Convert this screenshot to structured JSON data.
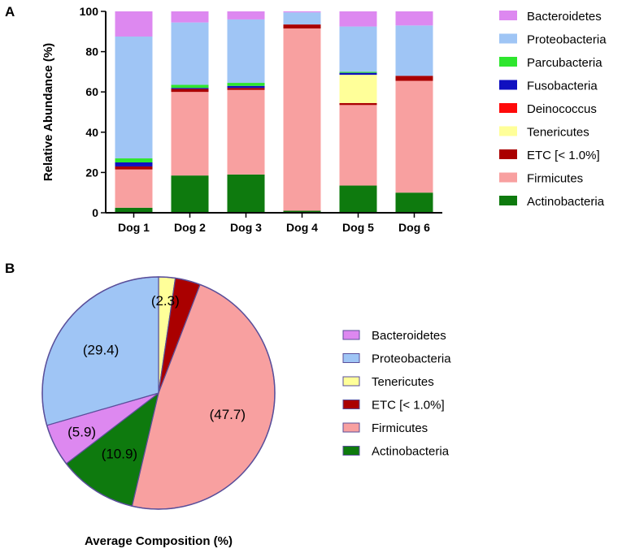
{
  "panels": {
    "a": "A",
    "b": "B"
  },
  "colors": {
    "Bacteroidetes": "#dd88f0",
    "Proteobacteria": "#9fc5f5",
    "Parcubacteria": "#2ee62e",
    "Fusobacteria": "#1010c0",
    "Deinococcus": "#ff0a0a",
    "Tenericutes": "#ffff99",
    "ETC [< 1.0%]": "#aa0000",
    "Firmicutes": "#f8a0a0",
    "Actinobacteria": "#0e7a0e"
  },
  "chart_data": [
    {
      "type": "bar",
      "stacked": true,
      "ylabel": "Relative Abundance  (%)",
      "xlabel": "",
      "ylim": [
        0,
        100
      ],
      "yticks": [
        "0",
        "20",
        "40",
        "60",
        "80",
        "100"
      ],
      "categories": [
        "Dog 1",
        "Dog 2",
        "Dog 3",
        "Dog 4",
        "Dog 5",
        "Dog 6"
      ],
      "legend_order": [
        "Bacteroidetes",
        "Proteobacteria",
        "Parcubacteria",
        "Fusobacteria",
        "Deinococcus",
        "Tenericutes",
        "ETC [< 1.0%]",
        "Firmicutes",
        "Actinobacteria"
      ],
      "legend_position": "right",
      "series": [
        {
          "name": "Actinobacteria",
          "values": [
            2.5,
            18.5,
            19,
            1,
            13.5,
            10
          ]
        },
        {
          "name": "Firmicutes",
          "values": [
            19,
            41.5,
            42,
            90.5,
            40,
            55.5
          ]
        },
        {
          "name": "ETC [< 1.0%]",
          "values": [
            1.5,
            1.5,
            1,
            2,
            1,
            2.5
          ]
        },
        {
          "name": "Tenericutes",
          "values": [
            0,
            0,
            0,
            0,
            14,
            0
          ]
        },
        {
          "name": "Deinococcus",
          "values": [
            0,
            0,
            0,
            0,
            0,
            0
          ]
        },
        {
          "name": "Fusobacteria",
          "values": [
            2,
            0.5,
            1,
            0,
            1,
            0
          ]
        },
        {
          "name": "Parcubacteria",
          "values": [
            2,
            1.5,
            1.5,
            0,
            0.5,
            0
          ]
        },
        {
          "name": "Proteobacteria",
          "values": [
            60.5,
            31,
            31.5,
            6,
            22.5,
            25
          ]
        },
        {
          "name": "Bacteroidetes",
          "values": [
            12.5,
            5.5,
            4,
            0.5,
            7.5,
            7
          ]
        }
      ]
    },
    {
      "type": "pie",
      "title": "Average Composition (%)",
      "legend_position": "right",
      "slices": [
        {
          "name": "Tenericutes",
          "value": 2.3,
          "label": "(2.3)"
        },
        {
          "name": "ETC [< 1.0%]",
          "value": 3.5,
          "label": ""
        },
        {
          "name": "Firmicutes",
          "value": 47.7,
          "label": "(47.7)"
        },
        {
          "name": "Actinobacteria",
          "value": 10.9,
          "label": "(10.9)"
        },
        {
          "name": "Bacteroidetes",
          "value": 5.9,
          "label": "(5.9)"
        },
        {
          "name": "Proteobacteria",
          "value": 29.4,
          "label": "(29.4)"
        }
      ],
      "legend_order": [
        "Bacteroidetes",
        "Proteobacteria",
        "Tenericutes",
        "ETC [< 1.0%]",
        "Firmicutes",
        "Actinobacteria"
      ]
    }
  ]
}
